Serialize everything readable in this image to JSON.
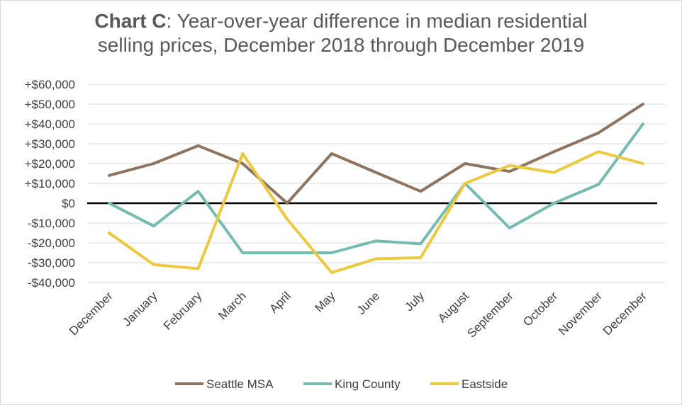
{
  "title": {
    "bold": "Chart C",
    "rest_line1": ": Year-over-year difference in median residential",
    "line2": "selling prices, December 2018 through December 2019"
  },
  "chart_data": {
    "type": "line",
    "title": "Chart C: Year-over-year difference in median residential selling prices, December 2018 through December 2019",
    "categories": [
      "December",
      "January",
      "February",
      "March",
      "April",
      "May",
      "June",
      "July",
      "August",
      "September",
      "October",
      "November",
      "December"
    ],
    "y_ticks": [
      {
        "value": 60000,
        "label": "+$60,000"
      },
      {
        "value": 50000,
        "label": "+$50,000"
      },
      {
        "value": 40000,
        "label": "+$40,000"
      },
      {
        "value": 30000,
        "label": "+$30,000"
      },
      {
        "value": 20000,
        "label": "+$20,000"
      },
      {
        "value": 10000,
        "label": "+$10,000"
      },
      {
        "value": 0,
        "label": "$0"
      },
      {
        "value": -10000,
        "label": "-$10,000"
      },
      {
        "value": -20000,
        "label": "-$20,000"
      },
      {
        "value": -30000,
        "label": "-$30,000"
      },
      {
        "value": -40000,
        "label": "-$40,000"
      }
    ],
    "ylim": [
      -40000,
      60000
    ],
    "grid": true,
    "legend_position": "bottom",
    "negative_label_color": "#c00000",
    "zero_line_color": "#000000",
    "series": [
      {
        "name": "Seattle MSA",
        "color": "#8c7461",
        "values": [
          14000,
          20000,
          29000,
          20000,
          0,
          25000,
          15500,
          6000,
          20000,
          16000,
          26000,
          35500,
          50000
        ]
      },
      {
        "name": "King County",
        "color": "#76bbb2",
        "values": [
          0,
          -11500,
          6000,
          -25000,
          -25000,
          -25000,
          -19000,
          -20500,
          10000,
          -12500,
          0,
          9500,
          40000
        ]
      },
      {
        "name": "Eastside",
        "color": "#ecc940",
        "values": [
          -15000,
          -31000,
          -33000,
          25000,
          -8000,
          -35000,
          -28000,
          -27500,
          10000,
          19000,
          15500,
          26000,
          20000
        ]
      }
    ]
  }
}
